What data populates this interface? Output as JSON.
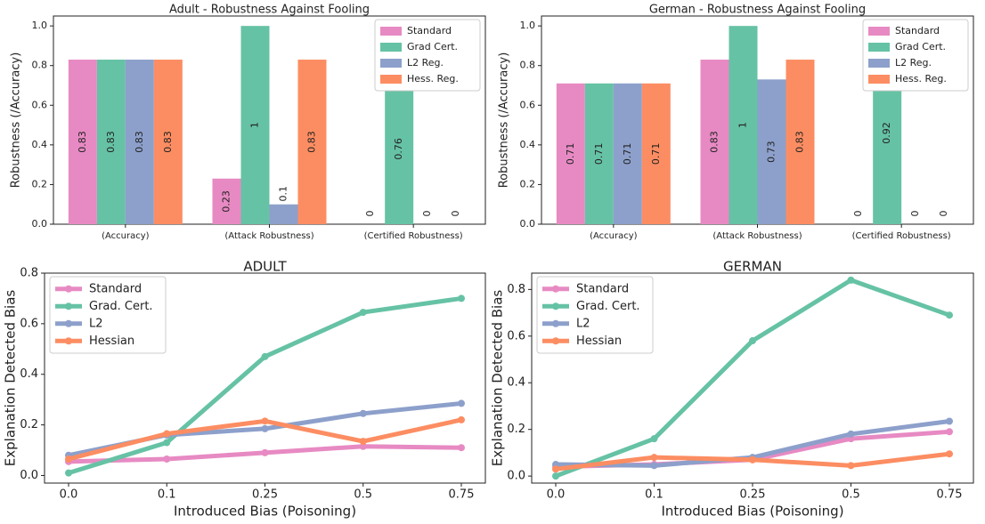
{
  "chart_data": [
    {
      "type": "bar",
      "title": "Adult - Robustness Against Fooling",
      "ylabel": "Robustness (/Accuracy)",
      "categories": [
        "(Accuracy)",
        "(Attack Robustness)",
        "(Certified Robustness)"
      ],
      "series": [
        {
          "name": "Standard",
          "color": "#e78ac3",
          "values": [
            0.83,
            0.23,
            0
          ]
        },
        {
          "name": "Grad Cert.",
          "color": "#66c2a5",
          "values": [
            0.83,
            1,
            0.76
          ]
        },
        {
          "name": "L2 Reg.",
          "color": "#8da0cb",
          "values": [
            0.83,
            0.1,
            0
          ]
        },
        {
          "name": "Hess. Reg.",
          "color": "#fc8d62",
          "values": [
            0.83,
            0.83,
            0
          ]
        }
      ],
      "ylim": [
        0,
        1.05
      ],
      "yticks": [
        {
          "value": 0,
          "label": "0.0"
        },
        0.2,
        0.4,
        0.6,
        0.8,
        {
          "value": 1,
          "label": "1.0"
        }
      ],
      "legend": "upper right"
    },
    {
      "type": "bar",
      "title": "German - Robustness Against Fooling",
      "ylabel": "Robustness (/Accuracy)",
      "categories": [
        "(Accuracy)",
        "(Attack Robustness)",
        "(Certified Robustness)"
      ],
      "series": [
        {
          "name": "Standard",
          "color": "#e78ac3",
          "values": [
            0.71,
            0.83,
            0
          ]
        },
        {
          "name": "Grad Cert.",
          "color": "#66c2a5",
          "values": [
            0.71,
            1,
            0.92
          ]
        },
        {
          "name": "L2 Reg.",
          "color": "#8da0cb",
          "values": [
            0.71,
            0.73,
            0
          ]
        },
        {
          "name": "Hess. Reg.",
          "color": "#fc8d62",
          "values": [
            0.71,
            0.83,
            0
          ]
        }
      ],
      "ylim": [
        0,
        1.05
      ],
      "yticks": [
        {
          "value": 0,
          "label": "0.0"
        },
        0.2,
        0.4,
        0.6,
        0.8,
        {
          "value": 1,
          "label": "1.0"
        }
      ],
      "legend": "upper right"
    },
    {
      "type": "line",
      "title": "ADULT",
      "xlabel": "Introduced Bias (Poisoning)",
      "ylabel": "Explanation Detected Bias",
      "categories": [
        "0.0",
        "0.1",
        "0.25",
        "0.5",
        "0.75"
      ],
      "series": [
        {
          "name": "Standard",
          "color": "#e78ac3",
          "values": [
            0.055,
            0.065,
            0.09,
            0.115,
            0.11
          ]
        },
        {
          "name": "Grad. Cert.",
          "color": "#66c2a5",
          "values": [
            0.01,
            0.13,
            0.47,
            0.645,
            0.7
          ]
        },
        {
          "name": "L2",
          "color": "#8da0cb",
          "values": [
            0.08,
            0.16,
            0.185,
            0.245,
            0.285
          ]
        },
        {
          "name": "Hessian",
          "color": "#fc8d62",
          "values": [
            0.065,
            0.165,
            0.215,
            0.135,
            0.22
          ]
        }
      ],
      "ylim": [
        -0.03,
        0.8
      ],
      "yticks": [
        {
          "value": 0,
          "label": "0.0"
        },
        0.2,
        0.4,
        0.6,
        0.8
      ],
      "legend": "upper left"
    },
    {
      "type": "line",
      "title": "GERMAN",
      "xlabel": "Introduced Bias (Poisoning)",
      "ylabel": "Explanation Detected Bias",
      "categories": [
        "0.0",
        "0.1",
        "0.25",
        "0.5",
        "0.75"
      ],
      "series": [
        {
          "name": "Standard",
          "color": "#e78ac3",
          "values": [
            0.04,
            0.05,
            0.07,
            0.16,
            0.19
          ]
        },
        {
          "name": "Grad. Cert.",
          "color": "#66c2a5",
          "values": [
            0.0,
            0.16,
            0.58,
            0.84,
            0.69
          ]
        },
        {
          "name": "L2",
          "color": "#8da0cb",
          "values": [
            0.05,
            0.045,
            0.08,
            0.18,
            0.235
          ]
        },
        {
          "name": "Hessian",
          "color": "#fc8d62",
          "values": [
            0.03,
            0.08,
            0.07,
            0.045,
            0.095
          ]
        }
      ],
      "ylim": [
        -0.03,
        0.87
      ],
      "yticks": [
        {
          "value": 0,
          "label": "0.0"
        },
        0.2,
        0.4,
        0.6,
        0.8
      ],
      "legend": "upper left"
    }
  ]
}
